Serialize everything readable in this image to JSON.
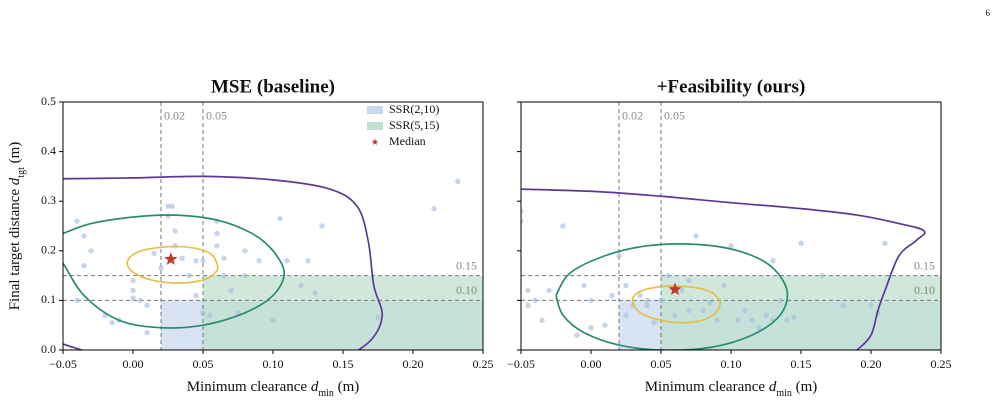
{
  "page_number": "6",
  "chart_data": [
    {
      "type": "scatter",
      "title": "MSE (baseline)",
      "xlabel": [
        "Minimum clearance ",
        "d",
        "min",
        " (m)"
      ],
      "ylabel": [
        "Final target distance ",
        "d",
        "tgt",
        " (m)"
      ],
      "xlim": [
        -0.05,
        0.25
      ],
      "ylim": [
        0,
        0.5
      ],
      "xticks": [
        {
          "value": -0.05,
          "label": "−0.05"
        },
        {
          "value": 0,
          "label": "0.00"
        },
        0.05,
        {
          "value": 0.1,
          "label": "0.10"
        },
        0.15,
        {
          "value": 0.2,
          "label": "0.20"
        },
        0.25
      ],
      "yticks": [
        {
          "value": 0,
          "label": "0.0"
        },
        0.1,
        0.2,
        0.3,
        0.4,
        0.5
      ],
      "regions": [
        {
          "name": "SSR(2,10)",
          "color": "#c9d9ee",
          "xmin": 0.02,
          "ymax": 0.1
        },
        {
          "name": "SSR(5,15)",
          "color": "#bfe0cf",
          "xmin": 0.05,
          "ymax": 0.15
        }
      ],
      "vlines": [
        0.02,
        0.05
      ],
      "hlines": [
        0.15,
        {
          "value": 0.1,
          "label": "0.10"
        }
      ],
      "legend": "upper right",
      "points": {
        "color": "#a7bfdc",
        "x": [
          -0.04,
          -0.035,
          -0.03,
          -0.035,
          -0.04,
          -0.02,
          -0.015,
          -0.01,
          0.0,
          0.0,
          0.0,
          0.005,
          0.01,
          0.01,
          0.015,
          0.02,
          0.025,
          0.025,
          0.028,
          0.03,
          0.03,
          0.035,
          0.04,
          0.045,
          0.05,
          0.05,
          0.055,
          0.06,
          0.06,
          0.065,
          0.065,
          0.07,
          0.075,
          0.08,
          0.08,
          0.09,
          0.1,
          0.105,
          0.11,
          0.12,
          0.125,
          0.13,
          0.135,
          0.175,
          0.215,
          0.232,
          0.06,
          0.045
        ],
        "y": [
          0.26,
          0.23,
          0.2,
          0.17,
          0.1,
          0.07,
          0.055,
          0.06,
          0.14,
          0.12,
          0.105,
          0.1,
          0.09,
          0.035,
          0.195,
          0.165,
          0.29,
          0.27,
          0.29,
          0.24,
          0.21,
          0.185,
          0.15,
          0.18,
          0.18,
          0.075,
          0.07,
          0.26,
          0.21,
          0.185,
          0.15,
          0.12,
          0.075,
          0.2,
          0.15,
          0.18,
          0.06,
          0.265,
          0.18,
          0.13,
          0.18,
          0.115,
          0.25,
          0.065,
          0.285,
          0.34,
          0.235,
          0.11
        ]
      },
      "contours": [
        {
          "color": "#5a3a96",
          "x": [
            -0.06,
            0,
            0.05,
            0.1,
            0.14,
            0.16,
            0.168,
            0.172,
            0.178,
            0.17,
            0.15,
            null,
            -0.055,
            -0.05,
            -0.04,
            -0.03
          ],
          "y": [
            0.345,
            0.347,
            0.35,
            0.343,
            0.325,
            0.29,
            0.22,
            0.13,
            0.07,
            0.02,
            -0.02,
            null,
            0.016,
            0.012,
            0.003,
            -0.005
          ]
        },
        {
          "color": "#2a8a72",
          "x": [
            -0.06,
            -0.05,
            -0.03,
            0,
            0.03,
            0.06,
            0.085,
            0.1,
            0.108,
            0.1,
            0.08,
            0.05,
            0.02,
            -0.01,
            -0.035,
            -0.05,
            -0.06
          ],
          "y": [
            0.225,
            0.235,
            0.255,
            0.268,
            0.272,
            0.262,
            0.235,
            0.2,
            0.155,
            0.11,
            0.075,
            0.05,
            0.045,
            0.06,
            0.11,
            0.175,
            0.21
          ]
        },
        {
          "color": "#e6c04c",
          "x": [
            0.06,
            0.055,
            0.04,
            0.02,
            0.003,
            -0.004,
            0.0,
            0.015,
            0.035,
            0.052,
            0.06,
            0.06
          ],
          "y": [
            0.175,
            0.195,
            0.207,
            0.207,
            0.197,
            0.178,
            0.157,
            0.14,
            0.135,
            0.143,
            0.16,
            0.175
          ]
        }
      ],
      "median": {
        "name": "Median",
        "color": "#c0392b",
        "x": 0.027,
        "y": 0.183
      }
    },
    {
      "type": "scatter",
      "title": "+Feasibility (ours)",
      "xlabel": [
        "Minimum clearance ",
        "d",
        "min",
        " (m)"
      ],
      "sharey": true,
      "xlim": [
        -0.05,
        0.25
      ],
      "ylim": [
        0,
        0.5
      ],
      "xticks": [
        {
          "value": -0.05,
          "label": "−0.05"
        },
        {
          "value": 0,
          "label": "0.00"
        },
        0.05,
        {
          "value": 0.1,
          "label": "0.10"
        },
        0.15,
        {
          "value": 0.2,
          "label": "0.20"
        },
        0.25
      ],
      "regions": [
        {
          "color": "#c9d9ee",
          "xmin": 0.02,
          "ymax": 0.1
        },
        {
          "color": "#bfe0cf",
          "xmin": 0.05,
          "ymax": 0.15
        }
      ],
      "vlines": [
        0.02,
        0.05
      ],
      "hlines": [
        0.15,
        {
          "value": 0.1,
          "label": "0.10"
        }
      ],
      "points": {
        "color": "#a7bfdc",
        "x": [
          -0.05,
          -0.05,
          -0.045,
          -0.045,
          -0.04,
          -0.03,
          -0.035,
          -0.01,
          -0.005,
          0.0,
          0.0,
          0.01,
          0.015,
          0.025,
          0.03,
          0.035,
          0.04,
          0.04,
          0.045,
          0.05,
          0.055,
          0.06,
          0.065,
          0.07,
          0.07,
          0.075,
          0.08,
          0.085,
          0.09,
          0.095,
          0.1,
          0.105,
          0.11,
          0.115,
          0.12,
          0.125,
          0.13,
          0.135,
          0.13,
          0.14,
          0.145,
          0.15,
          0.165,
          0.18,
          0.2,
          0.205,
          0.21,
          0.025,
          0.02,
          -0.02
        ],
        "y": [
          0.28,
          0.26,
          0.12,
          0.09,
          0.1,
          0.12,
          0.06,
          0.03,
          0.13,
          0.045,
          0.1,
          0.05,
          0.11,
          0.07,
          0.09,
          0.11,
          0.1,
          0.09,
          0.055,
          0.1,
          0.15,
          0.07,
          0.12,
          0.08,
          0.14,
          0.23,
          0.08,
          0.095,
          0.06,
          0.13,
          0.21,
          0.06,
          0.08,
          0.06,
          0.045,
          0.07,
          0.06,
          0.1,
          0.18,
          0.06,
          0.065,
          0.215,
          0.15,
          0.09,
          0.09,
          0.075,
          0.215,
          0.13,
          0.19,
          0.25
        ]
      },
      "contours": [
        {
          "color": "#5a3a96",
          "x": [
            -0.06,
            0,
            0.05,
            0.1,
            0.15,
            0.19,
            0.22,
            0.238,
            0.232,
            0.22,
            0.21,
            0.205,
            0.2,
            0.19,
            0.18
          ],
          "y": [
            0.325,
            0.32,
            0.31,
            0.297,
            0.285,
            0.272,
            0.255,
            0.24,
            0.22,
            0.19,
            0.12,
            0.08,
            0.03,
            0.0,
            -0.02
          ]
        },
        {
          "color": "#2a8a72",
          "x": [
            -0.025,
            -0.015,
            0.01,
            0.04,
            0.075,
            0.105,
            0.128,
            0.14,
            0.135,
            0.115,
            0.085,
            0.05,
            0.02,
            -0.005,
            -0.02,
            -0.025
          ],
          "y": [
            0.11,
            0.155,
            0.19,
            0.21,
            0.213,
            0.2,
            0.17,
            0.12,
            0.07,
            0.03,
            0.005,
            0.0,
            0.01,
            0.035,
            0.07,
            0.11
          ]
        },
        {
          "color": "#e6c04c",
          "x": [
            0.092,
            0.085,
            0.068,
            0.048,
            0.033,
            0.03,
            0.037,
            0.055,
            0.075,
            0.088,
            0.092,
            0.092
          ],
          "y": [
            0.1,
            0.118,
            0.128,
            0.127,
            0.115,
            0.095,
            0.072,
            0.057,
            0.057,
            0.072,
            0.09,
            0.1
          ]
        }
      ],
      "median": {
        "color": "#c0392b",
        "x": 0.06,
        "y": 0.122
      }
    }
  ]
}
